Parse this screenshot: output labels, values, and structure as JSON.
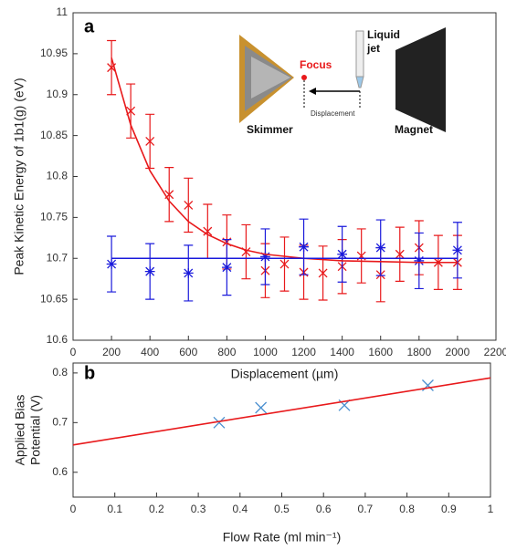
{
  "chart_data": [
    {
      "type": "line",
      "panel": "a",
      "xlabel": "Displacement (µm)",
      "ylabel": "Peak Kinetic Energy of 1b1(g) (eV)",
      "xlim": [
        0,
        2200
      ],
      "ylim": [
        10.6,
        11
      ],
      "xticks": [
        0,
        200,
        400,
        600,
        800,
        1000,
        1200,
        1400,
        1600,
        1800,
        2000,
        2200
      ],
      "yticks": [
        10.6,
        10.65,
        10.7,
        10.75,
        10.8,
        10.85,
        10.9,
        10.95,
        11
      ],
      "annotations": {
        "skimmer": "Skimmer",
        "focus": "Focus",
        "displacement": "Displacement",
        "liquid_jet": [
          "Liquid",
          "jet"
        ],
        "magnet": "Magnet"
      },
      "series": [
        {
          "color": "#e8191b",
          "marker": "x",
          "x": [
            200,
            300,
            400,
            500,
            600,
            700,
            800,
            900,
            1000,
            1100,
            1200,
            1300,
            1400,
            1500,
            1600,
            1700,
            1800,
            1900,
            2000
          ],
          "values": [
            10.933,
            10.88,
            10.843,
            10.778,
            10.765,
            10.733,
            10.72,
            10.708,
            10.685,
            10.693,
            10.683,
            10.682,
            10.69,
            10.703,
            10.68,
            10.705,
            10.713,
            10.695,
            10.695
          ],
          "errors": [
            0.033,
            0.033,
            0.033,
            0.033,
            0.033,
            0.033,
            0.033,
            0.033,
            0.033,
            0.033,
            0.033,
            0.033,
            0.033,
            0.033,
            0.033,
            0.033,
            0.033,
            0.033,
            0.033
          ]
        },
        {
          "color": "#1a1adb",
          "marker": "asterisk",
          "x": [
            200,
            400,
            600,
            800,
            1000,
            1200,
            1400,
            1600,
            1800,
            2000
          ],
          "values": [
            10.693,
            10.684,
            10.682,
            10.689,
            10.702,
            10.714,
            10.705,
            10.713,
            10.697,
            10.71
          ],
          "errors": [
            0.034,
            0.034,
            0.034,
            0.034,
            0.034,
            0.034,
            0.034,
            0.034,
            0.034,
            0.034
          ]
        },
        {
          "color": "#e8191b",
          "marker": "none",
          "x": [
            200,
            300,
            400,
            500,
            600,
            700,
            800,
            900,
            1000,
            1200,
            1400,
            1600,
            1800,
            2000
          ],
          "values": [
            10.945,
            10.863,
            10.807,
            10.77,
            10.745,
            10.729,
            10.718,
            10.71,
            10.705,
            10.7,
            10.697,
            10.696,
            10.695,
            10.695
          ]
        },
        {
          "color": "#1a1adb",
          "marker": "none",
          "x": [
            200,
            2000
          ],
          "values": [
            10.7,
            10.7
          ]
        }
      ]
    },
    {
      "type": "line",
      "panel": "b",
      "xlabel": "Flow Rate (ml min⁻¹)",
      "ylabel": [
        "Applied Bias",
        "Potential (V)"
      ],
      "xlim": [
        0,
        1
      ],
      "ylim": [
        0.55,
        0.82
      ],
      "xticks": [
        0,
        0.1,
        0.2,
        0.3,
        0.4,
        0.5,
        0.6,
        0.7,
        0.8,
        0.9,
        1
      ],
      "yticks": [
        0.6,
        0.7,
        0.8
      ],
      "series": [
        {
          "color": "#4a90d0",
          "marker": "bigx",
          "x": [
            0.35,
            0.45,
            0.65,
            0.85
          ],
          "values": [
            0.7,
            0.73,
            0.735,
            0.775
          ]
        },
        {
          "color": "#e8191b",
          "marker": "none",
          "x": [
            0,
            1
          ],
          "values": [
            0.655,
            0.79
          ]
        }
      ]
    }
  ]
}
